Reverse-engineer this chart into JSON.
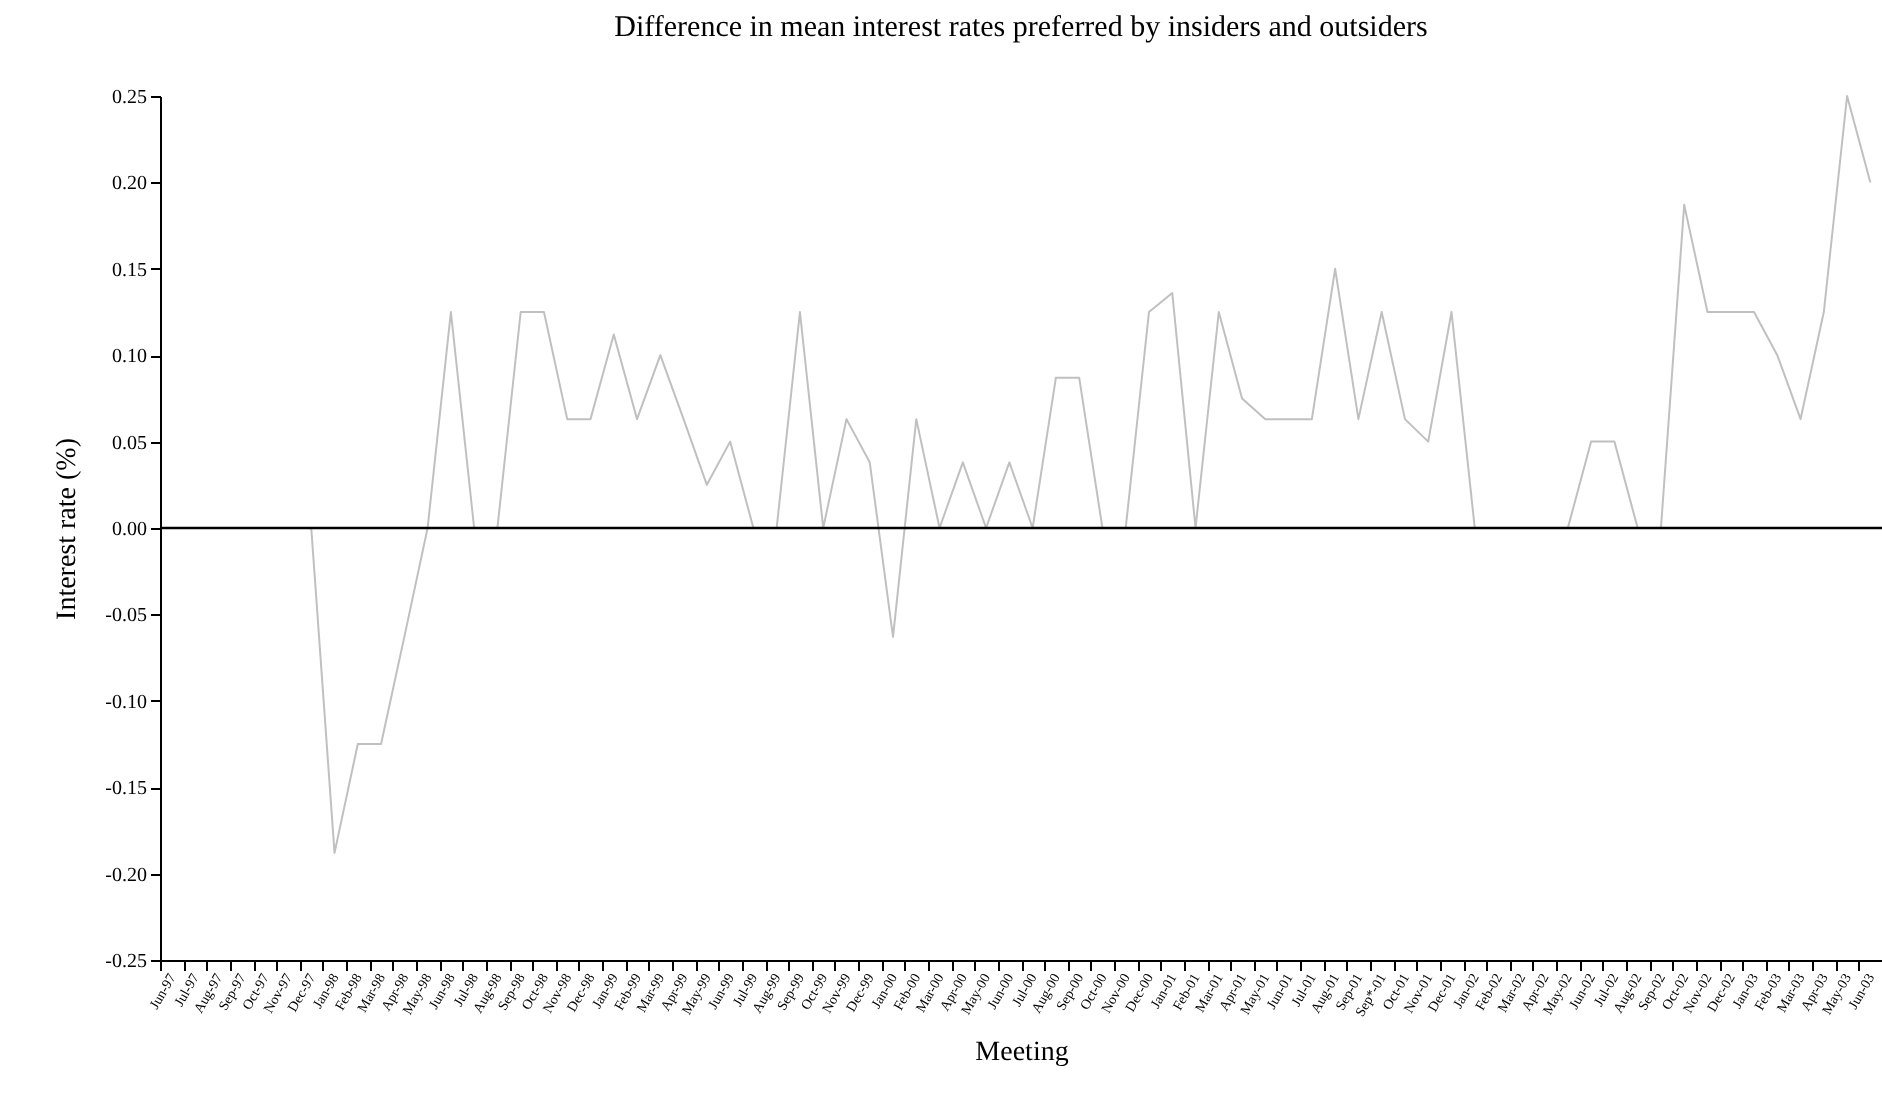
{
  "chart_data": {
    "type": "line",
    "title": "Difference in mean interest rates preferred by insiders and outsiders",
    "xlabel": "Meeting",
    "ylabel": "Interest rate (%)",
    "categories": [
      "Jun-97",
      "Jul-97",
      "Aug-97",
      "Sep-97",
      "Oct-97",
      "Nov-97",
      "Dec-97",
      "Jan-98",
      "Feb-98",
      "Mar-98",
      "Apr-98",
      "May-98",
      "Jun-98",
      "Jul-98",
      "Aug-98",
      "Sep-98",
      "Oct-98",
      "Nov-98",
      "Dec-98",
      "Jan-99",
      "Feb-99",
      "Mar-99",
      "Apr-99",
      "May-99",
      "Jun-99",
      "Jul-99",
      "Aug-99",
      "Sep-99",
      "Oct-99",
      "Nov-99",
      "Dec-99",
      "Jan-00",
      "Feb-00",
      "Mar-00",
      "Apr-00",
      "May-00",
      "Jun-00",
      "Jul-00",
      "Aug-00",
      "Sep-00",
      "Oct-00",
      "Nov-00",
      "Dec-00",
      "Jan-01",
      "Feb-01",
      "Mar-01",
      "Apr-01",
      "May-01",
      "Jun-01",
      "Jul-01",
      "Aug-01",
      "Sep-01",
      "Sep*-01",
      "Oct-01",
      "Nov-01",
      "Dec-01",
      "Jan-02",
      "Feb-02",
      "Mar-02",
      "Apr-02",
      "May-02",
      "Jun-02",
      "Jul-02",
      "Aug-02",
      "Sep-02",
      "Oct-02",
      "Nov-02",
      "Dec-02",
      "Jan-03",
      "Feb-03",
      "Mar-03",
      "Apr-03",
      "May-03",
      "Jun-03"
    ],
    "series": [
      {
        "color": "#c0c0c0",
        "values": [
          0,
          0,
          0,
          0,
          0,
          0,
          0,
          -0.188,
          -0.125,
          -0.125,
          -0.063,
          0,
          0.125,
          0,
          0,
          0.125,
          0.125,
          0.063,
          0.063,
          0.112,
          0.063,
          0.1,
          0.063,
          0.025,
          0.05,
          0,
          0,
          0.125,
          0,
          0.063,
          0.038,
          -0.063,
          0.063,
          0,
          0.038,
          0,
          0.038,
          0,
          0.087,
          0.087,
          0,
          0,
          0.125,
          0.136,
          0,
          0.125,
          0.075,
          0.063,
          0.063,
          0.063,
          0.15,
          0.063,
          0.125,
          0.063,
          0.05,
          0.125,
          0,
          0,
          0,
          0,
          0,
          0.05,
          0.05,
          0,
          0,
          0.187,
          0.125,
          0.125,
          0.125,
          0.1,
          0.063,
          0.125,
          0.25,
          0.2
        ]
      }
    ],
    "ylim": [
      -0.25,
      0.25
    ],
    "yticks": [
      {
        "value": -0.25,
        "label": "-0.25"
      },
      {
        "value": -0.2,
        "label": "-0.20"
      },
      {
        "value": -0.15,
        "label": "-0.15"
      },
      {
        "value": -0.1,
        "label": "-0.10"
      },
      {
        "value": -0.05,
        "label": "-0.05"
      },
      {
        "value": 0,
        "label": "0.00"
      },
      {
        "value": 0.05,
        "label": "0.05"
      },
      {
        "value": 0.1,
        "label": "0.10"
      },
      {
        "value": 0.15,
        "label": "0.15"
      },
      {
        "value": 0.2,
        "label": "0.20"
      },
      {
        "value": 0.25,
        "label": "0.25"
      }
    ],
    "ref_lines": [
      {
        "axis": "y",
        "value": 0,
        "color": "#000000"
      }
    ],
    "grid": false
  }
}
